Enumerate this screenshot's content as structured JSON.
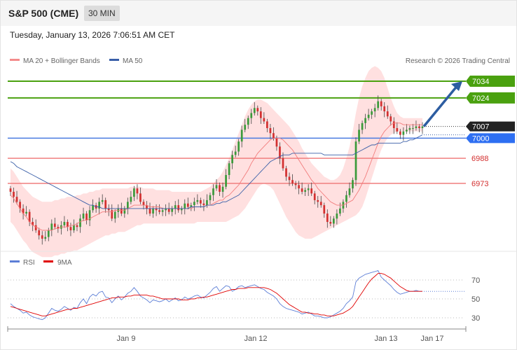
{
  "header": {
    "title": "S&P 500 (CME)",
    "interval": "30 MIN"
  },
  "datetime": "Tuesday, January 13, 2026 7:06:51 AM CET",
  "legend": {
    "bb": "MA 20 + Bollinger Bands",
    "ma50": "MA 50",
    "rsi": "RSI",
    "ma9": "9MA"
  },
  "copyright": "Research © 2026 Trading Central",
  "colors": {
    "up": "#3a9a3a",
    "down": "#d32f2f",
    "ma50": "#3a5fa8",
    "bb": "#ffd6d6",
    "resistance": "#4aa10f",
    "support": "#f07f7f",
    "arrow": "#2d5da1"
  },
  "chart_data": [
    {
      "type": "candlestick",
      "title": "S&P 500 (CME)",
      "ylim": [
        6935,
        7050
      ],
      "x_labels": [
        "Jan 9",
        "Jan 12",
        "Jan 13",
        "Jan 17"
      ],
      "levels": [
        {
          "value": 7034,
          "label": "7034",
          "kind": "resistance"
        },
        {
          "value": 7024,
          "label": "7024",
          "kind": "resistance"
        },
        {
          "value": 7007,
          "label": "7007",
          "kind": "last"
        },
        {
          "value": 7000,
          "label": "7000",
          "kind": "pivot"
        },
        {
          "value": 6988,
          "label": "6988",
          "kind": "support"
        },
        {
          "value": 6973,
          "label": "6973",
          "kind": "support"
        }
      ],
      "close": [
        6968,
        6965,
        6962,
        6958,
        6955,
        6956,
        6950,
        6948,
        6945,
        6942,
        6940,
        6941,
        6945,
        6949,
        6947,
        6946,
        6948,
        6950,
        6947,
        6945,
        6948,
        6947,
        6952,
        6955,
        6951,
        6957,
        6960,
        6958,
        6962,
        6963,
        6958,
        6957,
        6952,
        6956,
        6958,
        6955,
        6958,
        6962,
        6965,
        6970,
        6967,
        6962,
        6960,
        6958,
        6955,
        6958,
        6957,
        6956,
        6957,
        6958,
        6956,
        6958,
        6960,
        6957,
        6958,
        6961,
        6959,
        6960,
        6962,
        6963,
        6961,
        6960,
        6963,
        6966,
        6970,
        6972,
        6968,
        6971,
        6978,
        6985,
        6990,
        6992,
        6998,
        7005,
        7008,
        7012,
        7015,
        7018,
        7016,
        7012,
        7010,
        7006,
        7003,
        7000,
        6995,
        6988,
        6982,
        6977,
        6975,
        6973,
        6972,
        6970,
        6968,
        6969,
        6970,
        6967,
        6963,
        6962,
        6960,
        6955,
        6950,
        6949,
        6952,
        6955,
        6958,
        6962,
        6966,
        6970,
        6975,
        6998,
        7005,
        7009,
        7012,
        7014,
        7016,
        7018,
        7022,
        7019,
        7016,
        7013,
        7010,
        7006,
        7004,
        7002,
        7004,
        7005,
        7006,
        7006,
        7007,
        7006,
        7007
      ],
      "ma20": [
        6966,
        6964,
        6961,
        6958,
        6955,
        6953,
        6950,
        6948,
        6947,
        6946,
        6945,
        6945,
        6945,
        6945,
        6946,
        6946,
        6947,
        6947,
        6947,
        6948,
        6948,
        6949,
        6950,
        6951,
        6951,
        6952,
        6953,
        6954,
        6955,
        6956,
        6956,
        6956,
        6956,
        6957,
        6957,
        6957,
        6957,
        6958,
        6959,
        6960,
        6960,
        6960,
        6960,
        6960,
        6959,
        6959,
        6959,
        6959,
        6958,
        6958,
        6958,
        6958,
        6958,
        6958,
        6958,
        6958,
        6958,
        6958,
        6959,
        6959,
        6959,
        6959,
        6960,
        6960,
        6961,
        6962,
        6963,
        6963,
        6965,
        6966,
        6968,
        6970,
        6972,
        6975,
        6978,
        6981,
        6985,
        6988,
        6991,
        6993,
        6995,
        6997,
        6999,
        7000,
        7000,
        7000,
        6999,
        6997,
        6995,
        6993,
        6990,
        6987,
        6984,
        6981,
        6978,
        6975,
        6973,
        6970,
        6968,
        6966,
        6964,
        6962,
        6961,
        6960,
        6960,
        6960,
        6961,
        6962,
        6963,
        6966,
        6969,
        6973,
        6977,
        6982,
        6987,
        6992,
        6997,
        7001,
        7004,
        7006,
        7008,
        7009,
        7009,
        7009,
        7008,
        7008,
        7008,
        7008,
        7008,
        7008,
        7008
      ],
      "bb_upper": [
        6982,
        6980,
        6977,
        6974,
        6971,
        6969,
        6967,
        6965,
        6964,
        6963,
        6962,
        6962,
        6962,
        6962,
        6963,
        6963,
        6964,
        6964,
        6965,
        6965,
        6965,
        6966,
        6966,
        6967,
        6967,
        6968,
        6968,
        6969,
        6969,
        6970,
        6970,
        6970,
        6970,
        6970,
        6970,
        6970,
        6970,
        6970,
        6971,
        6971,
        6971,
        6971,
        6970,
        6970,
        6970,
        6970,
        6969,
        6969,
        6969,
        6969,
        6969,
        6968,
        6968,
        6968,
        6968,
        6968,
        6968,
        6968,
        6968,
        6968,
        6968,
        6969,
        6970,
        6971,
        6973,
        6975,
        6977,
        6980,
        6984,
        6988,
        6993,
        6998,
        7003,
        7008,
        7013,
        7017,
        7020,
        7022,
        7023,
        7023,
        7022,
        7021,
        7019,
        7017,
        7015,
        7013,
        7011,
        7009,
        7007,
        7004,
        7001,
        6998,
        6994,
        6991,
        6988,
        6985,
        6983,
        6981,
        6979,
        6977,
        6976,
        6975,
        6975,
        6976,
        6978,
        6982,
        6988,
        6995,
        7004,
        7015,
        7024,
        7031,
        7036,
        7040,
        7042,
        7043,
        7042,
        7040,
        7036,
        7030,
        7024,
        7019,
        7015,
        7013,
        7012,
        7012,
        7012,
        7012,
        7012,
        7012,
        7012
      ],
      "bb_lower": [
        6950,
        6948,
        6945,
        6942,
        6939,
        6937,
        6934,
        6932,
        6931,
        6930,
        6929,
        6929,
        6929,
        6929,
        6930,
        6930,
        6931,
        6931,
        6932,
        6932,
        6933,
        6933,
        6934,
        6935,
        6936,
        6937,
        6938,
        6939,
        6940,
        6941,
        6942,
        6942,
        6943,
        6943,
        6944,
        6944,
        6944,
        6945,
        6946,
        6947,
        6948,
        6948,
        6949,
        6949,
        6949,
        6949,
        6949,
        6949,
        6949,
        6949,
        6949,
        6949,
        6949,
        6949,
        6949,
        6949,
        6949,
        6949,
        6949,
        6950,
        6950,
        6950,
        6950,
        6950,
        6950,
        6950,
        6950,
        6950,
        6950,
        6951,
        6952,
        6953,
        6954,
        6956,
        6958,
        6961,
        6964,
        6967,
        6970,
        6972,
        6973,
        6972,
        6971,
        6969,
        6965,
        6961,
        6957,
        6953,
        6950,
        6947,
        6944,
        6942,
        6941,
        6940,
        6940,
        6940,
        6941,
        6942,
        6943,
        6944,
        6945,
        6946,
        6947,
        6948,
        6949,
        6950,
        6951,
        6952,
        6953,
        6954,
        6956,
        6959,
        6964,
        6970,
        6976,
        6982,
        6988,
        6993,
        6997,
        7000,
        7002,
        7003,
        7004,
        7004,
        7004,
        7004,
        7004,
        7004,
        7004,
        7004,
        7004
      ],
      "ma50": [
        6986,
        6985,
        6983,
        6982,
        6981,
        6980,
        6979,
        6978,
        6977,
        6976,
        6975,
        6974,
        6973,
        6972,
        6971,
        6970,
        6969,
        6968,
        6967,
        6966,
        6965,
        6964,
        6963,
        6962,
        6961,
        6960,
        6960,
        6959,
        6959,
        6958,
        6958,
        6958,
        6958,
        6958,
        6958,
        6958,
        6958,
        6958,
        6958,
        6958,
        6958,
        6958,
        6958,
        6958,
        6958,
        6958,
        6958,
        6958,
        6958,
        6958,
        6958,
        6958,
        6958,
        6958,
        6958,
        6958,
        6958,
        6959,
        6959,
        6959,
        6959,
        6959,
        6960,
        6960,
        6960,
        6961,
        6961,
        6962,
        6962,
        6963,
        6964,
        6965,
        6966,
        6968,
        6970,
        6972,
        6974,
        6976,
        6978,
        6980,
        6982,
        6984,
        6986,
        6987,
        6988,
        6989,
        6990,
        6990,
        6990,
        6991,
        6991,
        6991,
        6991,
        6991,
        6991,
        6991,
        6991,
        6991,
        6991,
        6990,
        6990,
        6990,
        6990,
        6990,
        6990,
        6990,
        6990,
        6990,
        6990,
        6991,
        6992,
        6993,
        6994,
        6995,
        6996,
        6996,
        6997,
        6997,
        6997,
        6997,
        6997,
        6997,
        6997,
        6997,
        6998,
        6998,
        6999,
        6999,
        7000,
        7001,
        7002
      ]
    },
    {
      "type": "line",
      "title": "RSI",
      "ylim": [
        25,
        82
      ],
      "yticks": [
        70,
        50,
        30
      ],
      "series": [
        {
          "name": "RSI",
          "values": [
            45,
            42,
            40,
            38,
            35,
            36,
            33,
            31,
            30,
            29,
            28,
            30,
            35,
            40,
            38,
            37,
            39,
            42,
            40,
            38,
            41,
            40,
            46,
            50,
            45,
            52,
            55,
            53,
            57,
            58,
            52,
            51,
            46,
            50,
            53,
            49,
            52,
            56,
            58,
            62,
            58,
            53,
            51,
            49,
            46,
            49,
            48,
            47,
            48,
            50,
            47,
            49,
            51,
            48,
            49,
            52,
            50,
            51,
            53,
            54,
            52,
            51,
            54,
            57,
            61,
            63,
            58,
            61,
            64,
            63,
            58,
            60,
            63,
            64,
            62,
            63,
            64,
            65,
            63,
            61,
            60,
            57,
            55,
            53,
            50,
            45,
            42,
            40,
            39,
            38,
            37,
            36,
            34,
            35,
            36,
            34,
            32,
            32,
            31,
            30,
            30,
            31,
            33,
            35,
            37,
            40,
            45,
            48,
            52,
            68,
            72,
            74,
            76,
            77,
            78,
            79,
            80,
            73,
            70,
            67,
            64,
            60,
            57,
            55,
            56,
            57,
            58,
            58,
            59,
            58,
            58
          ]
        },
        {
          "name": "9MA",
          "values": [
            42,
            41,
            40,
            39,
            38,
            37,
            36,
            35,
            34,
            33,
            32,
            32,
            33,
            34,
            35,
            36,
            37,
            38,
            39,
            39,
            40,
            40,
            41,
            42,
            43,
            44,
            45,
            46,
            47,
            48,
            49,
            50,
            51,
            51,
            52,
            52,
            52,
            53,
            53,
            54,
            54,
            54,
            54,
            54,
            53,
            53,
            52,
            51,
            50,
            50,
            50,
            50,
            50,
            50,
            49,
            49,
            49,
            50,
            50,
            51,
            51,
            52,
            52,
            53,
            54,
            55,
            56,
            57,
            58,
            59,
            60,
            60,
            61,
            61,
            61,
            62,
            62,
            62,
            62,
            62,
            62,
            61,
            60,
            58,
            56,
            53,
            50,
            47,
            44,
            42,
            40,
            38,
            36,
            36,
            35,
            35,
            34,
            34,
            33,
            33,
            32,
            32,
            32,
            33,
            34,
            35,
            37,
            39,
            42,
            47,
            52,
            57,
            62,
            67,
            71,
            74,
            77,
            77,
            76,
            74,
            72,
            69,
            66,
            63,
            61,
            59,
            58,
            58,
            58,
            58,
            58
          ]
        }
      ]
    }
  ]
}
